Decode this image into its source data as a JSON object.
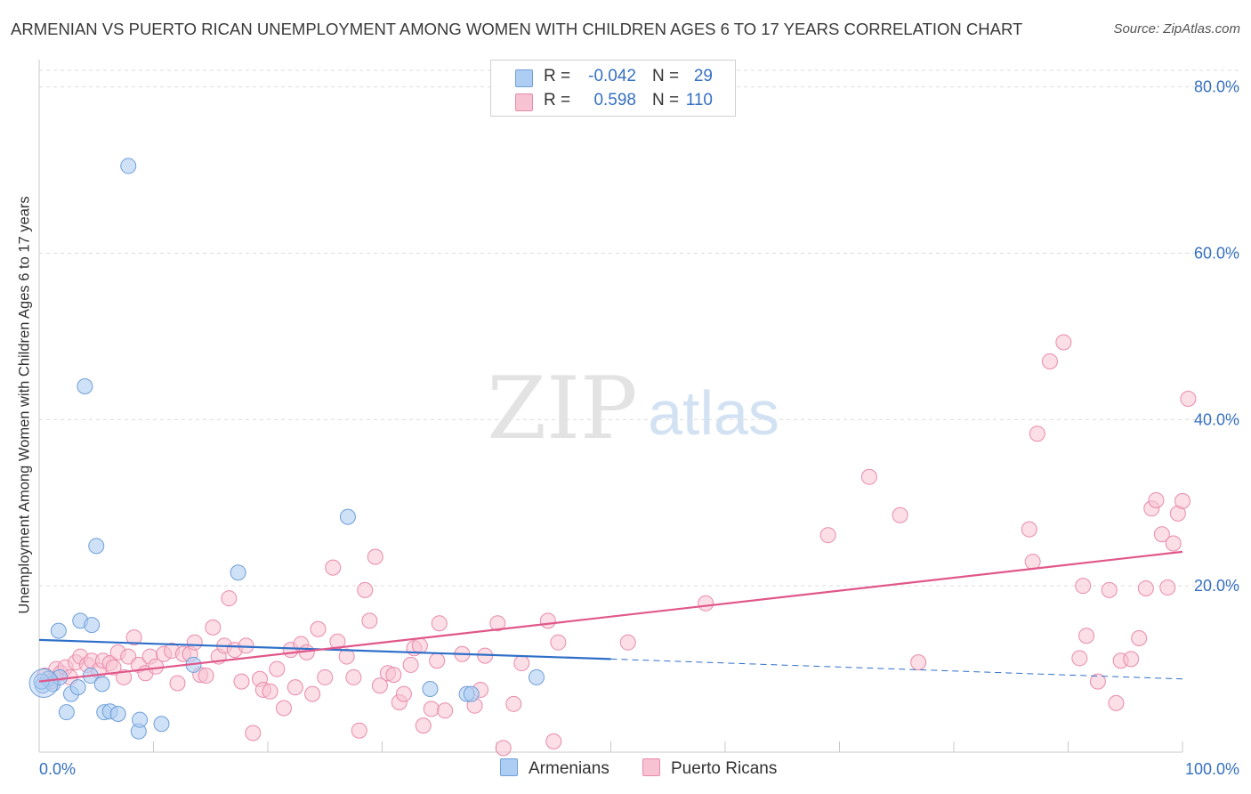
{
  "title": "ARMENIAN VS PUERTO RICAN UNEMPLOYMENT AMONG WOMEN WITH CHILDREN AGES 6 TO 17 YEARS CORRELATION CHART",
  "source": "Source: ZipAtlas.com",
  "watermark": {
    "zip": "ZIP",
    "atlas": "atlas"
  },
  "colors": {
    "armenians_fill": "#aecdf2",
    "armenians_stroke": "#6f9fd8",
    "armenians_line": "#2e6fc9",
    "puerto_fill": "#f7c2d2",
    "puerto_stroke": "#e98bab",
    "puerto_line": "#e0578a",
    "grid": "#dddddd",
    "tick_label": "#3570c0"
  },
  "legend": {
    "rows": [
      {
        "r_label": "R =",
        "r_value": "-0.042",
        "n_label": "N =",
        "n_value": "29"
      },
      {
        "r_label": "R =",
        "r_value": "0.598",
        "n_label": "N =",
        "n_value": "110"
      }
    ],
    "series_names": [
      "Armenians",
      "Puerto Ricans"
    ]
  },
  "chart_data": {
    "type": "scatter",
    "title": "ARMENIAN VS PUERTO RICAN UNEMPLOYMENT AMONG WOMEN WITH CHILDREN AGES 6 TO 17 YEARS CORRELATION CHART",
    "xlabel": "",
    "ylabel": "Unemployment Among Women with Children Ages 6 to 17 years",
    "xlim": [
      0,
      100
    ],
    "ylim": [
      0,
      82
    ],
    "x_tick_labels": [
      "0.0%",
      "100.0%"
    ],
    "y_ticks": [
      20,
      40,
      60,
      80
    ],
    "y_tick_labels": [
      "20.0%",
      "40.0%",
      "60.0%",
      "80.0%"
    ],
    "grid": true,
    "legend_position": "top-center",
    "series": [
      {
        "name": "Armenians",
        "r": -0.042,
        "n": 29,
        "trend": {
          "x0": 0,
          "y0": 13.5,
          "x1": 50,
          "y1": 11.2,
          "dashed_to_x": 100,
          "dashed_y": 8.8
        },
        "points": [
          [
            0.3,
            8.0
          ],
          [
            0.8,
            8.8
          ],
          [
            1.2,
            8.2
          ],
          [
            1.8,
            9.0
          ],
          [
            1.7,
            14.6
          ],
          [
            2.4,
            4.8
          ],
          [
            2.8,
            7.0
          ],
          [
            3.4,
            7.8
          ],
          [
            3.6,
            15.8
          ],
          [
            4.0,
            44.0
          ],
          [
            4.5,
            9.2
          ],
          [
            4.6,
            15.3
          ],
          [
            5.0,
            24.8
          ],
          [
            5.5,
            8.2
          ],
          [
            5.7,
            4.8
          ],
          [
            6.2,
            4.9
          ],
          [
            6.9,
            4.6
          ],
          [
            7.8,
            70.5
          ],
          [
            8.7,
            2.5
          ],
          [
            8.8,
            3.9
          ],
          [
            10.7,
            3.4
          ],
          [
            13.5,
            10.5
          ],
          [
            17.4,
            21.6
          ],
          [
            27.0,
            28.3
          ],
          [
            34.2,
            7.6
          ],
          [
            37.4,
            7.0
          ],
          [
            37.8,
            7.0
          ],
          [
            43.5,
            9.0
          ],
          [
            0.2,
            8.5
          ]
        ]
      },
      {
        "name": "Puerto Ricans",
        "r": 0.598,
        "n": 110,
        "trend": {
          "x0": 0,
          "y0": 8.5,
          "x1": 100,
          "y1": 24.1
        },
        "points": [
          [
            0.5,
            9.2
          ],
          [
            1.0,
            8.5
          ],
          [
            1.5,
            10.0
          ],
          [
            1.9,
            9.5
          ],
          [
            2.3,
            10.2
          ],
          [
            2.7,
            9.0
          ],
          [
            3.2,
            10.8
          ],
          [
            3.6,
            11.5
          ],
          [
            4.2,
            10.5
          ],
          [
            4.6,
            11.0
          ],
          [
            5.2,
            9.8
          ],
          [
            5.6,
            11.0
          ],
          [
            6.2,
            10.7
          ],
          [
            6.5,
            10.2
          ],
          [
            6.9,
            12.0
          ],
          [
            7.4,
            9.0
          ],
          [
            7.8,
            11.5
          ],
          [
            8.3,
            13.8
          ],
          [
            8.7,
            10.5
          ],
          [
            9.3,
            9.5
          ],
          [
            9.7,
            11.5
          ],
          [
            10.2,
            10.3
          ],
          [
            10.9,
            11.8
          ],
          [
            11.6,
            12.2
          ],
          [
            12.1,
            8.3
          ],
          [
            12.6,
            11.8
          ],
          [
            13.2,
            11.8
          ],
          [
            13.6,
            13.2
          ],
          [
            14.1,
            9.3
          ],
          [
            14.6,
            9.2
          ],
          [
            15.2,
            15.0
          ],
          [
            15.7,
            11.5
          ],
          [
            16.2,
            12.8
          ],
          [
            16.6,
            18.5
          ],
          [
            17.1,
            12.3
          ],
          [
            18.1,
            12.8
          ],
          [
            17.7,
            8.5
          ],
          [
            18.7,
            2.3
          ],
          [
            19.3,
            8.8
          ],
          [
            19.6,
            7.5
          ],
          [
            20.2,
            7.3
          ],
          [
            20.8,
            10.0
          ],
          [
            21.4,
            5.3
          ],
          [
            22.0,
            12.3
          ],
          [
            22.4,
            7.8
          ],
          [
            22.9,
            13.0
          ],
          [
            23.4,
            12.0
          ],
          [
            23.9,
            7.0
          ],
          [
            24.4,
            14.8
          ],
          [
            25.0,
            9.0
          ],
          [
            25.7,
            22.2
          ],
          [
            26.1,
            13.3
          ],
          [
            26.9,
            11.5
          ],
          [
            27.5,
            9.0
          ],
          [
            28.0,
            2.6
          ],
          [
            28.5,
            19.5
          ],
          [
            28.9,
            15.8
          ],
          [
            29.4,
            23.5
          ],
          [
            29.8,
            8.0
          ],
          [
            30.5,
            9.5
          ],
          [
            31.0,
            9.3
          ],
          [
            31.5,
            6.0
          ],
          [
            31.9,
            7.0
          ],
          [
            32.5,
            10.5
          ],
          [
            32.8,
            12.5
          ],
          [
            33.3,
            12.8
          ],
          [
            33.6,
            3.2
          ],
          [
            34.3,
            5.2
          ],
          [
            34.8,
            11.0
          ],
          [
            35.0,
            15.5
          ],
          [
            35.5,
            5.0
          ],
          [
            37.0,
            11.8
          ],
          [
            38.1,
            5.6
          ],
          [
            38.6,
            7.5
          ],
          [
            39.0,
            11.6
          ],
          [
            40.1,
            15.5
          ],
          [
            40.6,
            0.5
          ],
          [
            41.5,
            5.8
          ],
          [
            42.2,
            10.7
          ],
          [
            44.5,
            15.8
          ],
          [
            45.0,
            1.3
          ],
          [
            45.4,
            13.2
          ],
          [
            51.5,
            13.2
          ],
          [
            58.3,
            17.9
          ],
          [
            69.0,
            26.1
          ],
          [
            72.6,
            33.1
          ],
          [
            75.3,
            28.5
          ],
          [
            76.9,
            10.8
          ],
          [
            86.6,
            26.8
          ],
          [
            86.9,
            22.9
          ],
          [
            87.3,
            38.3
          ],
          [
            88.4,
            47.0
          ],
          [
            89.6,
            49.3
          ],
          [
            91.0,
            11.3
          ],
          [
            91.3,
            20.0
          ],
          [
            91.6,
            14.0
          ],
          [
            92.6,
            8.5
          ],
          [
            93.6,
            19.5
          ],
          [
            94.2,
            5.9
          ],
          [
            94.6,
            11.0
          ],
          [
            95.5,
            11.2
          ],
          [
            96.2,
            13.7
          ],
          [
            96.8,
            19.7
          ],
          [
            97.3,
            29.3
          ],
          [
            97.7,
            30.3
          ],
          [
            98.2,
            26.2
          ],
          [
            98.7,
            19.8
          ],
          [
            99.2,
            25.1
          ],
          [
            99.6,
            28.7
          ],
          [
            100.0,
            30.2
          ],
          [
            100.5,
            42.5
          ]
        ]
      }
    ]
  }
}
